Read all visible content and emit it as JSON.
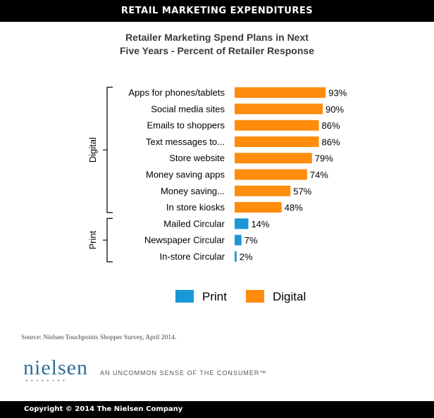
{
  "header": {
    "title": "RETAIL MARKETING EXPENDITURES"
  },
  "chart_data": {
    "type": "bar",
    "orientation": "horizontal",
    "title_line1": "Retailer Marketing Spend Plans in Next",
    "title_line2": "Five Years - Percent of Retailer Response",
    "categories": [
      "Apps for phones/tablets",
      "Social media sites",
      "Emails to shoppers",
      "Text messages to...",
      "Store website",
      "Money saving apps",
      "Money saving...",
      "In store kiosks",
      "Mailed Circular",
      "Newspaper Circular",
      "In-store Circular"
    ],
    "values": [
      93,
      90,
      86,
      86,
      79,
      74,
      57,
      48,
      14,
      7,
      2
    ],
    "value_labels": [
      "93%",
      "90%",
      "86%",
      "86%",
      "79%",
      "74%",
      "57%",
      "48%",
      "14%",
      "7%",
      "2%"
    ],
    "groups": [
      "Digital",
      "Digital",
      "Digital",
      "Digital",
      "Digital",
      "Digital",
      "Digital",
      "Digital",
      "Print",
      "Print",
      "Print"
    ],
    "group_labels": {
      "digital": "Digital",
      "print": "Print"
    },
    "legend": [
      {
        "name": "Print",
        "color": "#1a97d6"
      },
      {
        "name": "Digital",
        "color": "#ff8c0c"
      }
    ],
    "colors": {
      "Print": "#1a97d6",
      "Digital": "#ff8c0c"
    },
    "xlim": [
      0,
      100
    ],
    "legend_position": "bottom"
  },
  "source": "Source: Nielsen Touchpoints Shopper Survey, April 2014.",
  "brand": {
    "logo": "nielsen",
    "logo_dots": "••••••••",
    "tagline": "AN UNCOMMON SENSE OF THE CONSUMER™"
  },
  "footer": {
    "copyright": "Copyright © 2014 The Nielsen Company"
  }
}
